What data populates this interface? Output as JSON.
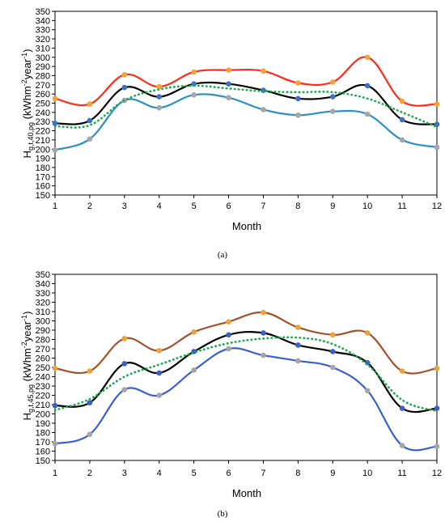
{
  "chart_data": [
    {
      "type": "line",
      "panel_label": "(a)",
      "xlabel": "Month",
      "ylabel_main": "H",
      "ylabel_sub": "g,t,40,pg",
      "ylabel_unit_a": " (kWhm",
      "ylabel_unit_sup1": "-2",
      "ylabel_unit_b": "year",
      "ylabel_unit_sup2": "-1",
      "ylabel_unit_c": ")",
      "x": [
        1,
        2,
        3,
        4,
        5,
        6,
        7,
        8,
        9,
        10,
        11,
        12
      ],
      "ylim": [
        150,
        350
      ],
      "ytick_step": 10,
      "grid": false,
      "series": [
        {
          "color": "#ff2a1a",
          "marker": "#f5a23a",
          "style": "solid",
          "values": [
            255,
            249,
            281,
            268,
            284,
            286,
            285,
            272,
            273,
            300,
            252,
            249
          ]
        },
        {
          "color": "#000000",
          "marker": "#3b72c4",
          "style": "solid",
          "values": [
            228,
            231,
            267,
            257,
            271,
            271,
            264,
            255,
            257,
            269,
            232,
            227
          ]
        },
        {
          "color": "#2b8fc6",
          "marker": "#a6a6a6",
          "style": "solid",
          "values": [
            199,
            211,
            253,
            245,
            259,
            256,
            243,
            237,
            241,
            238,
            210,
            202
          ]
        },
        {
          "color": "#19a84a",
          "marker": "",
          "style": "dotted",
          "values": [
            225,
            226,
            253,
            265,
            269,
            266,
            263,
            262,
            262,
            255,
            240,
            224
          ]
        }
      ]
    },
    {
      "type": "line",
      "panel_label": "(b)",
      "xlabel": "Month",
      "ylabel_main": "H",
      "ylabel_sub": "g,t,45,pg",
      "ylabel_unit_a": " (kWhm",
      "ylabel_unit_sup1": "-2",
      "ylabel_unit_b": "year",
      "ylabel_unit_sup2": "-1",
      "ylabel_unit_c": ")",
      "x": [
        1,
        2,
        3,
        4,
        5,
        6,
        7,
        8,
        9,
        10,
        11,
        12
      ],
      "ylim": [
        150,
        350
      ],
      "ytick_step": 10,
      "grid": false,
      "series": [
        {
          "color": "#a0522d",
          "marker": "#e8a33b",
          "style": "solid",
          "values": [
            249,
            246,
            281,
            268,
            288,
            299,
            309,
            293,
            285,
            287,
            246,
            249
          ]
        },
        {
          "color": "#000000",
          "marker": "#3b5fc4",
          "style": "solid",
          "values": [
            209,
            212,
            254,
            244,
            267,
            285,
            287,
            274,
            267,
            255,
            206,
            206
          ]
        },
        {
          "color": "#3a5fd0",
          "marker": "#a6a6a6",
          "style": "solid",
          "values": [
            168,
            178,
            226,
            220,
            247,
            270,
            263,
            257,
            250,
            225,
            166,
            165
          ]
        },
        {
          "color": "#19a84a",
          "marker": "",
          "style": "dotted",
          "values": [
            204,
            216,
            240,
            253,
            266,
            276,
            281,
            282,
            275,
            253,
            215,
            203
          ]
        }
      ]
    }
  ]
}
